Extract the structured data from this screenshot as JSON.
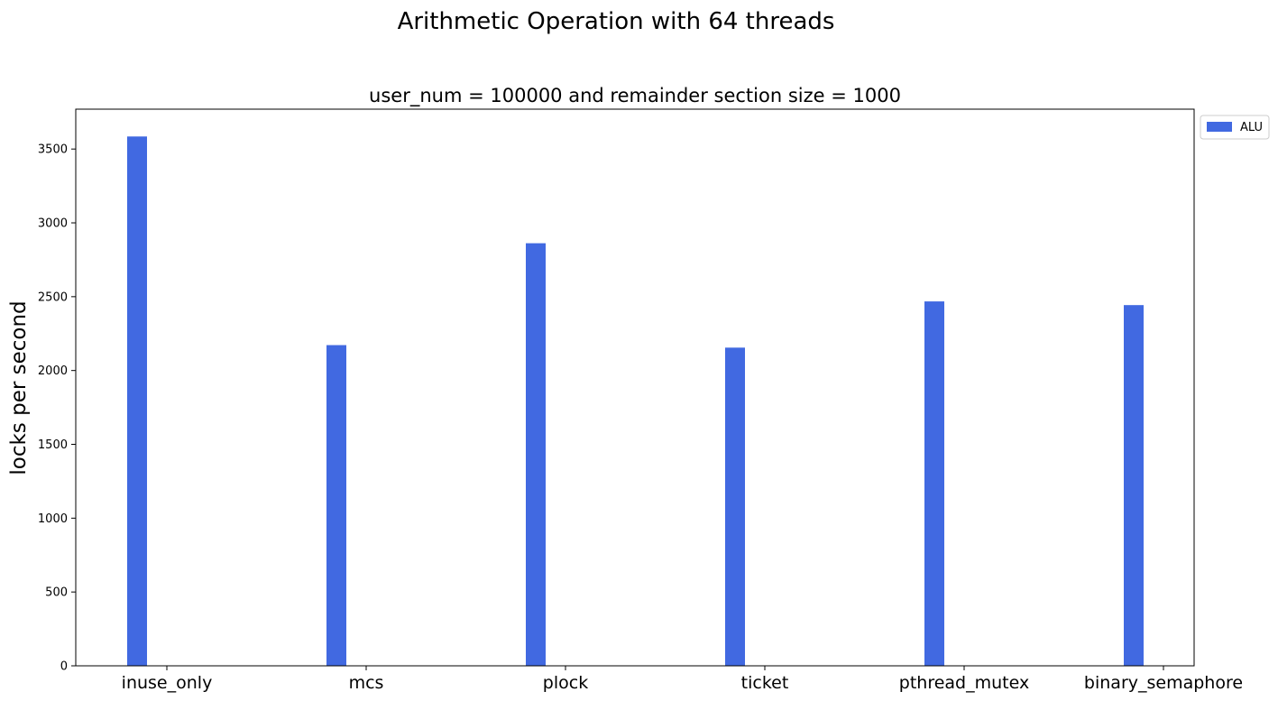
{
  "chart_data": {
    "type": "bar",
    "title": "Arithmetic Operation with 64 threads",
    "subtitle": "user_num = 100000 and remainder section size = 1000",
    "xlabel": "",
    "ylabel": "locks per second",
    "categories": [
      "inuse_only",
      "mcs",
      "plock",
      "ticket",
      "pthread_mutex",
      "binary_semaphore"
    ],
    "series": [
      {
        "name": "ALU",
        "color": "#4169e1",
        "values": [
          3585,
          2172,
          2862,
          2155,
          2468,
          2443
        ]
      }
    ],
    "ylim": [
      0,
      3770
    ],
    "yticks": [
      0,
      500,
      1000,
      1500,
      2000,
      2500,
      3000,
      3500
    ],
    "grid": false,
    "legend_position": "outside-top-right"
  }
}
